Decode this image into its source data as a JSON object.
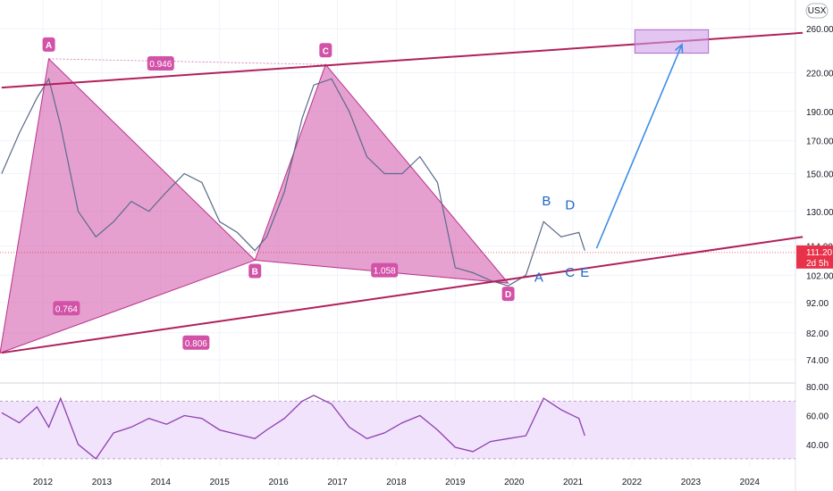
{
  "currency": "USX",
  "colors": {
    "pattern_fill": "#d252a8",
    "pattern_stroke": "#b8328c",
    "channel": "#b0205a",
    "target_box": "#cf9ee6",
    "arrow": "#3a8ee6",
    "wave_label": "#1e66c8",
    "rsi_line": "#8e3fb0",
    "rsi_band": "#f1e3fb",
    "price_tag": "#e8324a",
    "cloud_green": "#a5d6a7",
    "cloud_red": "#f7c6c0"
  },
  "chart_data": [
    {
      "type": "line",
      "panel": "price",
      "scale": "log",
      "x_ticks": [
        "2012",
        "2013",
        "2014",
        "2015",
        "2016",
        "2017",
        "2018",
        "2019",
        "2020",
        "2021",
        "2022",
        "2023",
        "2024"
      ],
      "y_ticks": [
        74.0,
        82.0,
        92.0,
        102.0,
        114.0,
        130.0,
        150.0,
        170.0,
        190.0,
        220.0,
        260.0
      ],
      "y_tick_labels": [
        "74.00",
        "82.00",
        "92.00",
        "102.00",
        "114.00",
        "130.00",
        "150.00",
        "170.00",
        "190.00",
        "220.00",
        "260.00"
      ],
      "ylim": [
        68,
        290
      ],
      "current_price": {
        "value": 111.2,
        "label": "111.20",
        "countdown": "2d 5h"
      },
      "price_series": {
        "x": [
          2011.3,
          2011.6,
          2011.9,
          2012.1,
          2012.3,
          2012.6,
          2012.9,
          2013.2,
          2013.5,
          2013.8,
          2014.1,
          2014.4,
          2014.7,
          2015.0,
          2015.3,
          2015.6,
          2015.8,
          2016.1,
          2016.4,
          2016.6,
          2016.9,
          2017.2,
          2017.5,
          2017.8,
          2018.1,
          2018.4,
          2018.7,
          2019.0,
          2019.3,
          2019.6,
          2019.9,
          2020.2,
          2020.5,
          2020.8,
          2021.1,
          2021.2
        ],
        "y": [
          150,
          175,
          200,
          215,
          180,
          130,
          118,
          125,
          135,
          130,
          140,
          150,
          145,
          125,
          120,
          112,
          118,
          140,
          185,
          210,
          215,
          190,
          160,
          150,
          150,
          160,
          145,
          105,
          103,
          100,
          98,
          102,
          125,
          118,
          120,
          112
        ]
      },
      "harmonic_pattern": {
        "points": [
          {
            "label": "A",
            "x": 2012.1,
            "y": 232
          },
          {
            "label": "B",
            "x": 2015.6,
            "y": 108
          },
          {
            "label": "C",
            "x": 2016.8,
            "y": 227
          },
          {
            "label": "D",
            "x": 2019.9,
            "y": 99
          }
        ],
        "ratios": [
          {
            "label": "0.946",
            "x": 2014.0,
            "y": 228
          },
          {
            "label": "1.058",
            "x": 2017.8,
            "y": 104
          },
          {
            "label": "0.764",
            "x": 2012.4,
            "y": 90
          },
          {
            "label": "0.806",
            "x": 2014.6,
            "y": 79
          }
        ]
      },
      "channel_upper": [
        {
          "x": 2011.3,
          "y": 208
        },
        {
          "x": 2024.9,
          "y": 256
        }
      ],
      "channel_lower": [
        {
          "x": 2011.3,
          "y": 76
        },
        {
          "x": 2024.9,
          "y": 118
        }
      ],
      "wave_labels": [
        {
          "label": "A",
          "x": 2020.42,
          "y": 99.5
        },
        {
          "label": "B",
          "x": 2020.55,
          "y": 133
        },
        {
          "label": "C",
          "x": 2020.95,
          "y": 101.5
        },
        {
          "label": "D",
          "x": 2020.95,
          "y": 131
        },
        {
          "label": "E",
          "x": 2021.2,
          "y": 101.5
        }
      ],
      "target_zone": {
        "x0": 2022.05,
        "x1": 2023.3,
        "y0": 237,
        "y1": 259
      },
      "arrow": {
        "x0": 2021.4,
        "y0": 113,
        "x1": 2022.85,
        "y1": 245
      }
    },
    {
      "type": "line",
      "panel": "rsi",
      "y_ticks": [
        40.0,
        60.0,
        80.0
      ],
      "y_tick_labels": [
        "40.00",
        "60.00",
        "80.00"
      ],
      "ylim": [
        25,
        82
      ],
      "band": [
        30,
        70
      ],
      "values": [
        62,
        55,
        66,
        52,
        72,
        40,
        30,
        48,
        52,
        58,
        54,
        60,
        58,
        50,
        47,
        44,
        50,
        58,
        70,
        74,
        68,
        52,
        44,
        48,
        55,
        60,
        50,
        38,
        35,
        42,
        44,
        46,
        72,
        64,
        58,
        46
      ]
    }
  ]
}
